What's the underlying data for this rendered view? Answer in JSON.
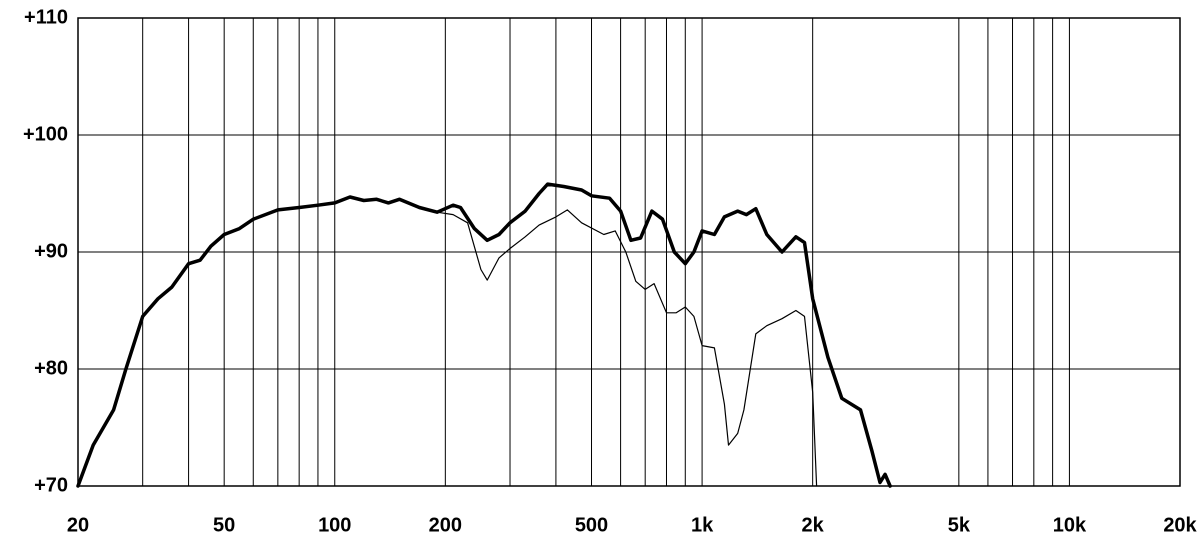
{
  "chart_data": {
    "type": "line",
    "log_x": true,
    "grid": true,
    "color_grid": "#000000",
    "xlim": [
      20,
      20000
    ],
    "ylim": [
      70,
      110
    ],
    "xticks": [
      20,
      50,
      100,
      200,
      500,
      {
        "value": 1000,
        "label": "1k"
      },
      {
        "value": 2000,
        "label": "2k"
      },
      {
        "value": 5000,
        "label": "5k"
      },
      {
        "value": 10000,
        "label": "10k"
      },
      {
        "value": 20000,
        "label": "20k"
      }
    ],
    "xgrid": [
      30,
      40,
      60,
      70,
      80,
      90,
      300,
      400,
      600,
      700,
      800,
      900,
      6000,
      7000,
      8000,
      9000
    ],
    "yticks": [
      {
        "value": 70,
        "label": "+70"
      },
      {
        "value": 80,
        "label": "+80"
      },
      {
        "value": 90,
        "label": "+90"
      },
      {
        "value": 100,
        "label": "+100"
      },
      {
        "value": 110,
        "label": "+110"
      }
    ],
    "series": [
      {
        "color": "#000000",
        "width": 3.5,
        "x": [
          20,
          22,
          25,
          27,
          30,
          33,
          36,
          40,
          43,
          46,
          50,
          55,
          60,
          70,
          80,
          90,
          100,
          110,
          120,
          130,
          140,
          150,
          170,
          190,
          210,
          220,
          240,
          260,
          280,
          300,
          330,
          360,
          380,
          420,
          470,
          500,
          560,
          600,
          640,
          680,
          730,
          780,
          840,
          900,
          950,
          1000,
          1080,
          1150,
          1250,
          1320,
          1400,
          1500,
          1650,
          1800,
          1900,
          2000,
          2200,
          2400,
          2700,
          2900,
          3050,
          3150,
          3250
        ],
        "values": [
          70,
          73.5,
          76.5,
          80,
          84.5,
          86,
          87,
          89,
          89.3,
          90.5,
          91.5,
          92,
          92.8,
          93.6,
          93.8,
          94,
          94.2,
          94.7,
          94.4,
          94.5,
          94.2,
          94.5,
          93.8,
          93.4,
          94,
          93.8,
          92,
          91,
          91.5,
          92.5,
          93.5,
          95,
          95.8,
          95.6,
          95.3,
          94.8,
          94.6,
          93.5,
          91,
          91.2,
          93.5,
          92.8,
          90,
          89,
          90,
          91.8,
          91.5,
          93,
          93.5,
          93.2,
          93.7,
          91.5,
          90,
          91.3,
          90.8,
          86,
          81,
          77.5,
          76.5,
          73,
          70.3,
          71,
          70
        ]
      },
      {
        "color": "#000000",
        "width": 1.2,
        "x": [
          20,
          22,
          25,
          27,
          30,
          33,
          36,
          40,
          43,
          46,
          50,
          55,
          60,
          70,
          80,
          90,
          100,
          110,
          120,
          130,
          140,
          150,
          170,
          190,
          210,
          230,
          250,
          260,
          280,
          300,
          330,
          360,
          400,
          430,
          470,
          540,
          580,
          620,
          660,
          700,
          740,
          800,
          850,
          900,
          950,
          1000,
          1080,
          1150,
          1180,
          1250,
          1300,
          1400,
          1500,
          1650,
          1800,
          1900,
          2000,
          2050
        ],
        "values": [
          70,
          73.5,
          76.5,
          80,
          84.5,
          86,
          87,
          89,
          89.3,
          90.5,
          91.5,
          92,
          92.8,
          93.6,
          93.8,
          94,
          94.2,
          94.7,
          94.4,
          94.5,
          94.2,
          94.5,
          93.8,
          93.4,
          93.2,
          92.5,
          88.5,
          87.6,
          89.5,
          90.3,
          91.3,
          92.3,
          93,
          93.6,
          92.5,
          91.5,
          91.8,
          90,
          87.5,
          86.8,
          87.3,
          84.8,
          84.8,
          85.3,
          84.5,
          82,
          81.8,
          77,
          73.5,
          74.5,
          76.5,
          83,
          83.7,
          84.3,
          85,
          84.5,
          78,
          70
        ]
      }
    ]
  }
}
